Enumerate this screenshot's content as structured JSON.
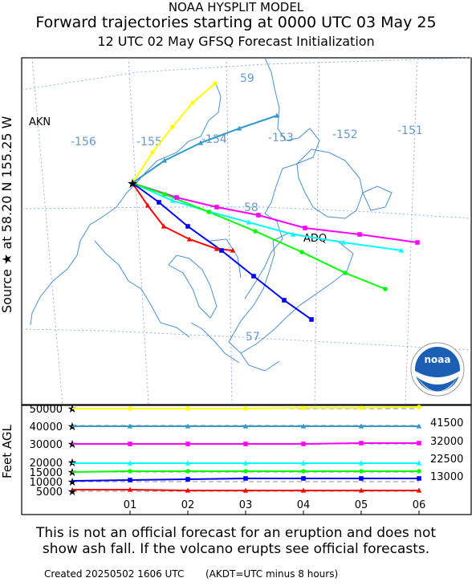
{
  "header": {
    "line1": "NOAA HYSPLIT MODEL",
    "line2": "Forward trajectories starting at 0000 UTC 03 May 25",
    "line3": "12 UTC 02 May    GFSQ  Forecast Initialization"
  },
  "map": {
    "side_label": "Source ★ at    58.20 N  155.25 W",
    "station_akn": "AKN",
    "station_adq": "ADQ",
    "lon_labels": [
      "-156",
      "-155",
      "-154",
      "-153",
      "-152",
      "-151"
    ],
    "lat_labels": [
      "59",
      "58",
      "57"
    ],
    "logo_text": "noaa",
    "source": {
      "lat": 58.2,
      "lon": -155.25
    }
  },
  "height_panel": {
    "ylabel": "Feet AGL",
    "y_ticks": [
      "50000",
      "40000",
      "30000",
      "20000",
      "15000",
      "10000",
      "5000"
    ],
    "x_ticks": [
      "01",
      "02",
      "03",
      "04",
      "05",
      "06"
    ],
    "right_labels": [
      "41500",
      "32000",
      "22500",
      "13000"
    ]
  },
  "trajectories": [
    {
      "name": "yellow",
      "color": "#ffff00",
      "start_ft": 50000
    },
    {
      "name": "steelblue",
      "color": "#3399cc",
      "start_ft": 40000
    },
    {
      "name": "magenta",
      "color": "#ff00ff",
      "start_ft": 30000
    },
    {
      "name": "cyan",
      "color": "#00ffff",
      "start_ft": 20000
    },
    {
      "name": "green",
      "color": "#00ff00",
      "start_ft": 15000
    },
    {
      "name": "blue",
      "color": "#0000ff",
      "start_ft": 10000
    },
    {
      "name": "red",
      "color": "#ff0000",
      "start_ft": 5000
    }
  ],
  "footer": {
    "line1": "This is not an official forecast for an eruption and does not",
    "line2": "show ash fall. If the volcano erupts see official forecasts.",
    "created": "Created 20250502 1606 UTC",
    "akdt": "(AKDT=UTC minus 8 hours)"
  }
}
